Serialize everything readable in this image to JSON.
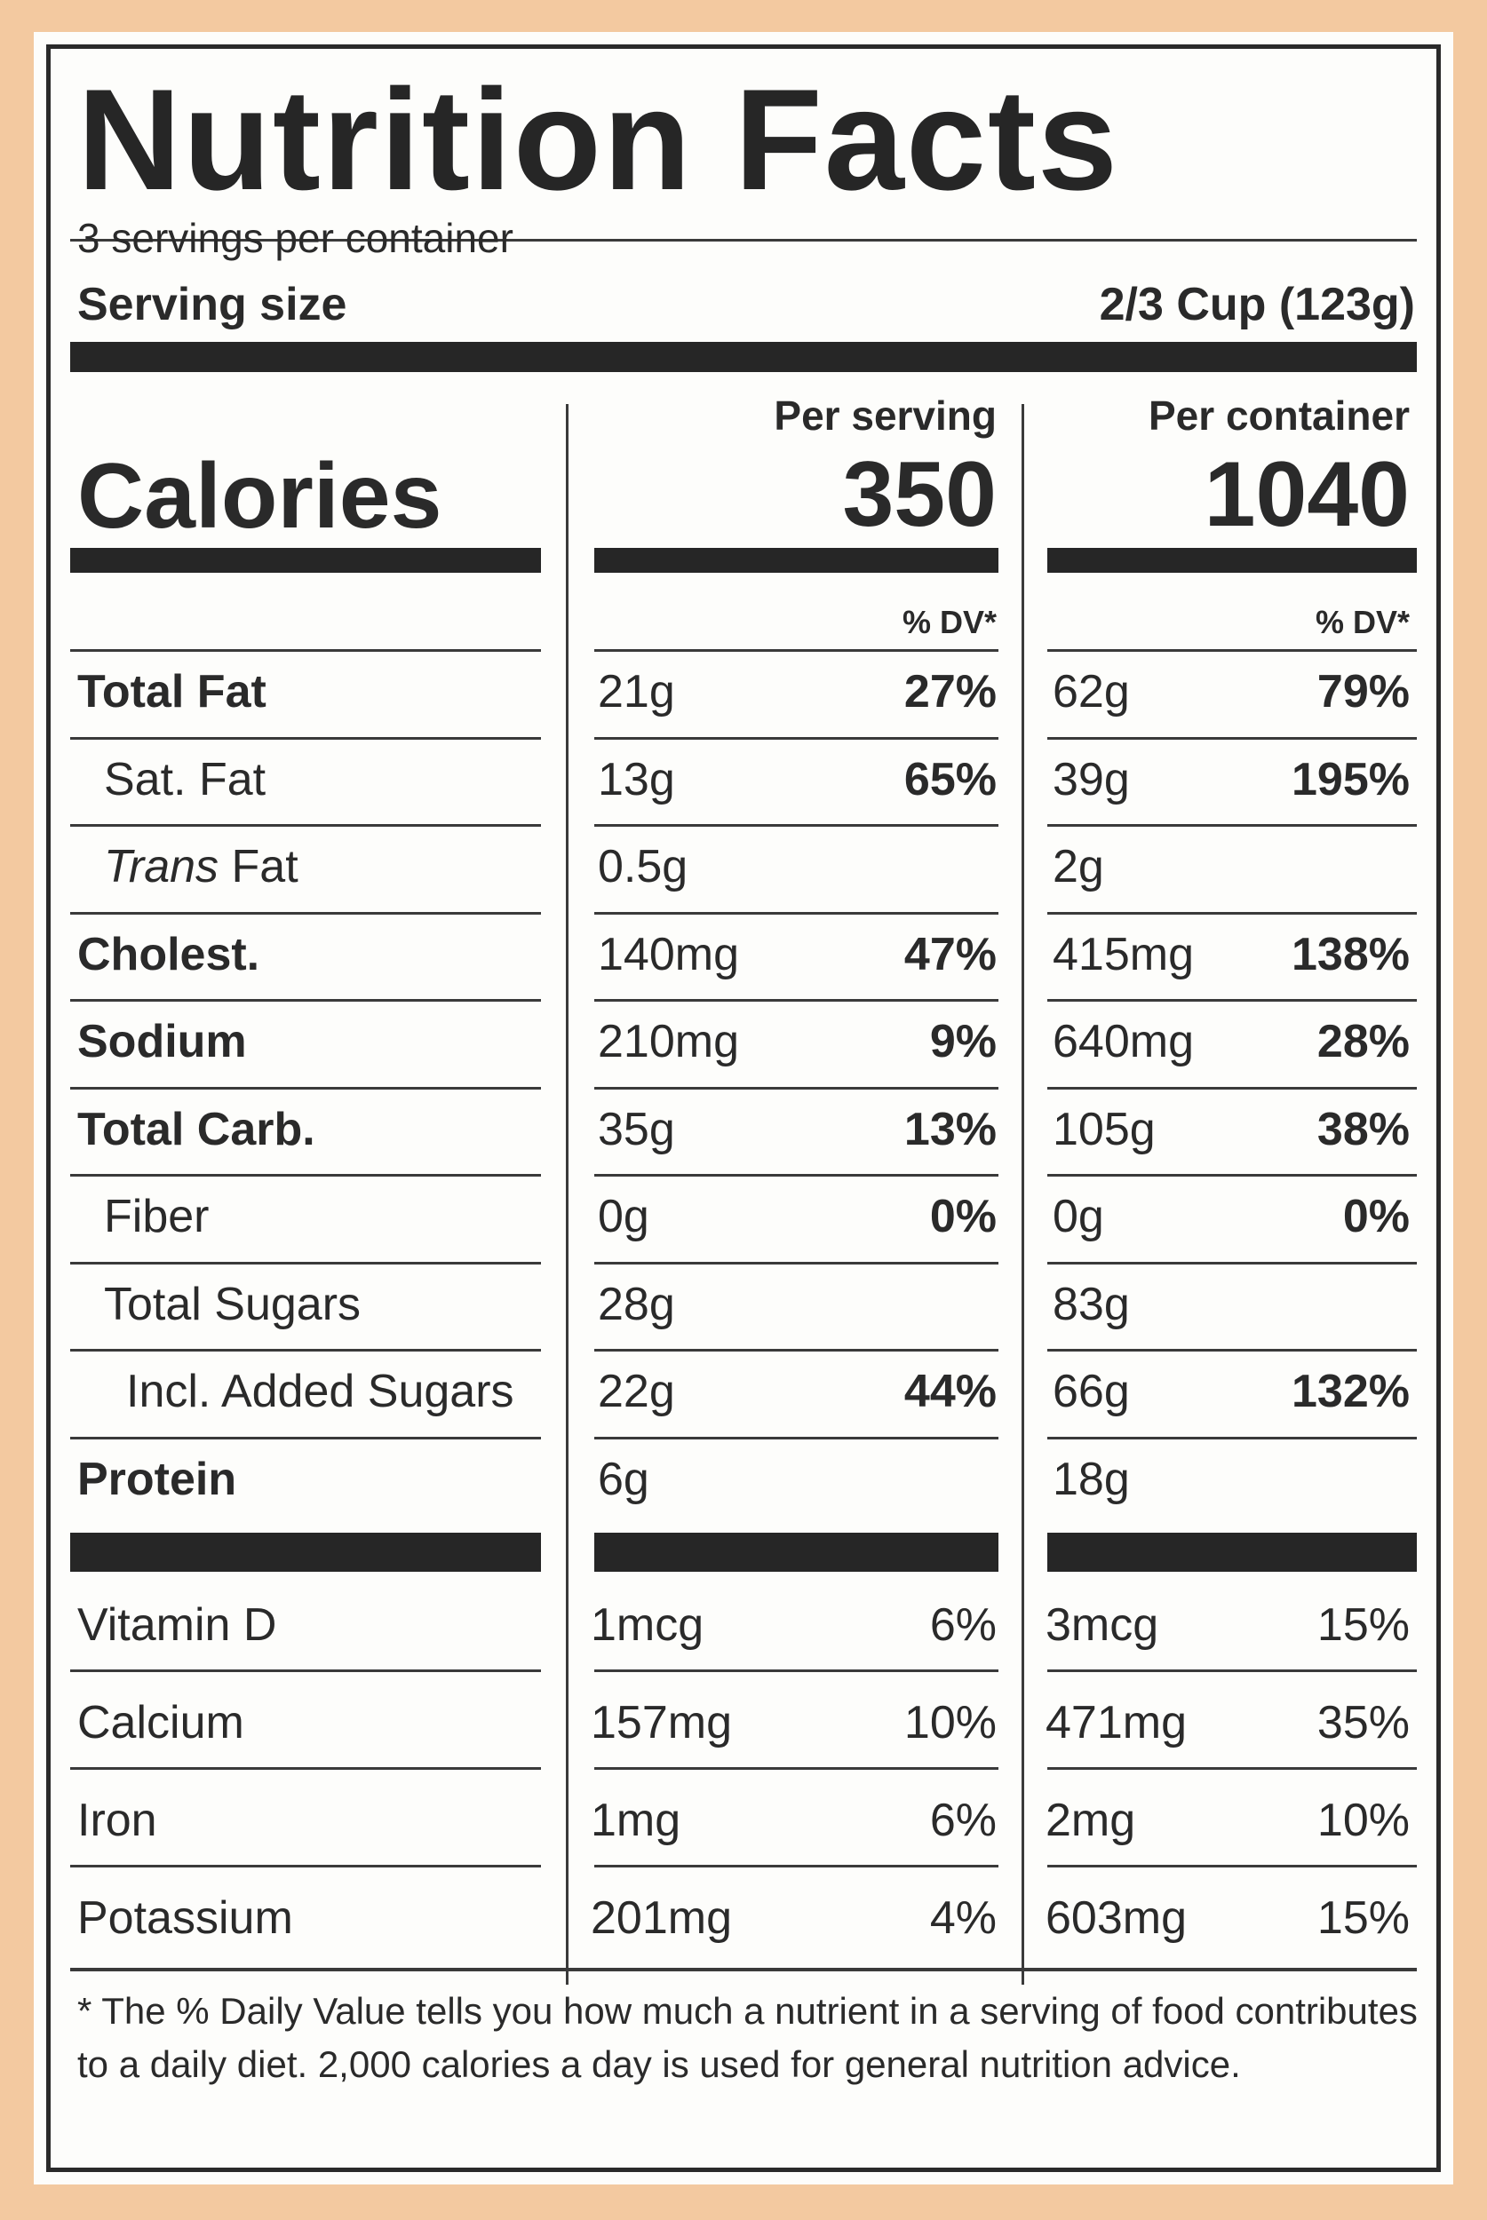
{
  "title": "Nutrition Facts",
  "servings_per_container": "3 servings per container",
  "serving_size": {
    "label": "Serving size",
    "value": "2/3 Cup (123g)"
  },
  "calories": {
    "label": "Calories",
    "per_serving_label": "Per serving",
    "per_serving": "350",
    "per_container_label": "Per container",
    "per_container": "1040"
  },
  "dv_header": "% DV*",
  "nutrients": [
    {
      "name": "Total Fat",
      "bold": true,
      "indent": 0,
      "serving_amount": "21g",
      "serving_dv": "27%",
      "container_amount": "62g",
      "container_dv": "79%"
    },
    {
      "name": "Sat. Fat",
      "bold": false,
      "indent": 1,
      "serving_amount": "13g",
      "serving_dv": "65%",
      "container_amount": "39g",
      "container_dv": "195%"
    },
    {
      "name": "Trans",
      "name_suffix": " Fat",
      "italic_prefix": true,
      "bold": false,
      "indent": 1,
      "serving_amount": "0.5g",
      "serving_dv": "",
      "container_amount": "2g",
      "container_dv": ""
    },
    {
      "name": "Cholest.",
      "bold": true,
      "indent": 0,
      "serving_amount": "140mg",
      "serving_dv": "47%",
      "container_amount": "415mg",
      "container_dv": "138%"
    },
    {
      "name": "Sodium",
      "bold": true,
      "indent": 0,
      "serving_amount": "210mg",
      "serving_dv": "9%",
      "container_amount": "640mg",
      "container_dv": "28%"
    },
    {
      "name": "Total Carb.",
      "bold": true,
      "indent": 0,
      "serving_amount": "35g",
      "serving_dv": "13%",
      "container_amount": "105g",
      "container_dv": "38%"
    },
    {
      "name": "Fiber",
      "bold": false,
      "indent": 1,
      "serving_amount": "0g",
      "serving_dv": "0%",
      "container_amount": "0g",
      "container_dv": "0%"
    },
    {
      "name": "Total Sugars",
      "bold": false,
      "indent": 1,
      "serving_amount": "28g",
      "serving_dv": "",
      "container_amount": "83g",
      "container_dv": ""
    },
    {
      "name": "Incl. Added Sugars",
      "bold": false,
      "indent": 2,
      "serving_amount": "22g",
      "serving_dv": "44%",
      "container_amount": "66g",
      "container_dv": "132%"
    },
    {
      "name": "Protein",
      "bold": true,
      "indent": 0,
      "serving_amount": "6g",
      "serving_dv": "",
      "container_amount": "18g",
      "container_dv": ""
    }
  ],
  "micronutrients": [
    {
      "name": "Vitamin D",
      "serving_amount": "1mcg",
      "serving_dv": "6%",
      "container_amount": "3mcg",
      "container_dv": "15%"
    },
    {
      "name": "Calcium",
      "serving_amount": "157mg",
      "serving_dv": "10%",
      "container_amount": "471mg",
      "container_dv": "35%"
    },
    {
      "name": "Iron",
      "serving_amount": "1mg",
      "serving_dv": "6%",
      "container_amount": "2mg",
      "container_dv": "10%"
    },
    {
      "name": "Potassium",
      "serving_amount": "201mg",
      "serving_dv": "4%",
      "container_amount": "603mg",
      "container_dv": "15%"
    }
  ],
  "footnote": "* The % Daily Value tells you how much a nutrient in a serving of food contributes to a daily diet. 2,000 calories a day is used for general nutrition advice."
}
